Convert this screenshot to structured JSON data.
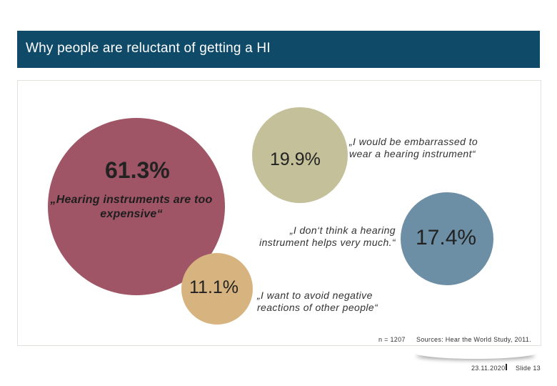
{
  "header": {
    "title": "Why people are reluctant of getting a HI"
  },
  "chart_data": {
    "type": "bubble",
    "title": "Why people are reluctant of getting a HI",
    "unit": "%",
    "series": [
      {
        "key": "expensive",
        "value": 61.3,
        "label": "61.3%",
        "reason": "„Hearing instruments are too expensive“",
        "color": "#a05566"
      },
      {
        "key": "embarrassed",
        "value": 19.9,
        "label": "19.9%",
        "reason": "„I would be embarrassed to wear a hearing instrument“",
        "color": "#c3c09a"
      },
      {
        "key": "not_helpful",
        "value": 17.4,
        "label": "17.4%",
        "reason": "„I don‘t think a hearing instrument helps very much.“",
        "color": "#6c8fa5"
      },
      {
        "key": "negative_reactions",
        "value": 11.1,
        "label": "11.1%",
        "reason": "„I want to avoid negative reactions of other people“",
        "color": "#d7b47f"
      }
    ]
  },
  "footer": {
    "sample": "n = 1207",
    "source": "Sources: Hear the World Study, 2011.",
    "date": "23.11.2020",
    "slide": "Slide 13"
  }
}
